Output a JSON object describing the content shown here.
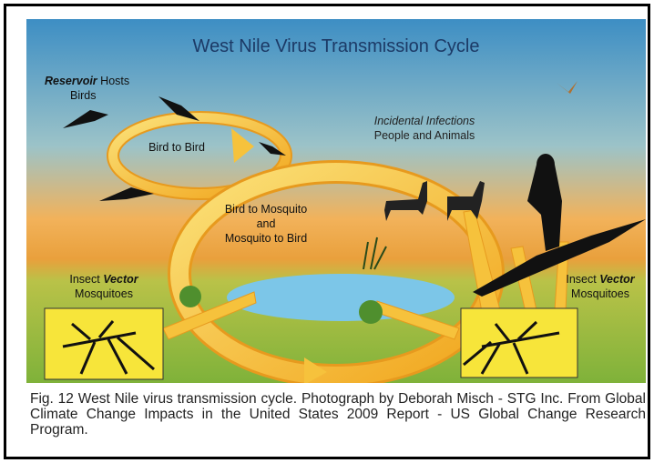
{
  "title": "West Nile Virus Transmission Cycle",
  "reservoir": {
    "emphasis": "Reservoir",
    "rest": "Hosts",
    "line2": "Birds"
  },
  "bird_to_bird": "Bird to Bird",
  "bird_mosquito": [
    "Bird to Mosquito",
    "and",
    "Mosquito to Bird"
  ],
  "incidental": {
    "line1": "Incidental Infections",
    "line2": "People and Animals"
  },
  "vector_left": {
    "rest": "Insect",
    "emphasis": "Vector",
    "line2": "Mosquitoes"
  },
  "vector_right": {
    "rest": "Insect",
    "emphasis": "Vector",
    "line2": "Mosquitoes"
  },
  "caption": "Fig. 12 West Nile virus transmission cycle. Photograph by Deborah Misch - STG Inc. From Global Climate Change Impacts in the United States 2009 Report - US Global Change Research Program."
}
